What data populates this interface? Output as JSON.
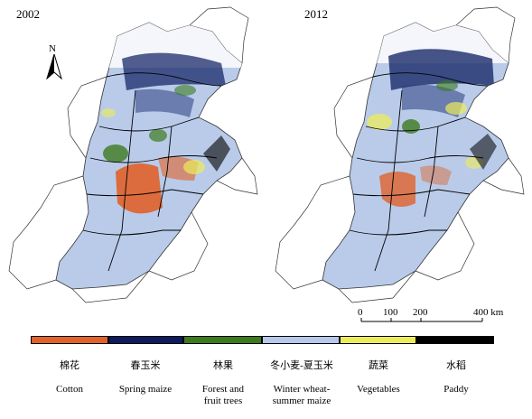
{
  "maps": [
    {
      "year": "2002"
    },
    {
      "year": "2012"
    }
  ],
  "north_arrow": {
    "label": "N"
  },
  "scale_bar": {
    "ticks": [
      "0",
      "100",
      "200",
      "400 km"
    ]
  },
  "legend": [
    {
      "zh": "棉花",
      "en": "Cotton",
      "color": "#e0622a"
    },
    {
      "zh": "春玉米",
      "en": "Spring maize",
      "color": "#0d1a5c"
    },
    {
      "zh": "林果",
      "en": "Forest and\nfruit trees",
      "color": "#3c7a1e"
    },
    {
      "zh": "冬小麦-夏玉米",
      "en": "Winter wheat-\nsummer maize",
      "color": "#b6c8ea"
    },
    {
      "zh": "蔬菜",
      "en": "Vegetables",
      "color": "#ecec5a"
    },
    {
      "zh": "水稻",
      "en": "Paddy",
      "color": "#000000"
    }
  ]
}
